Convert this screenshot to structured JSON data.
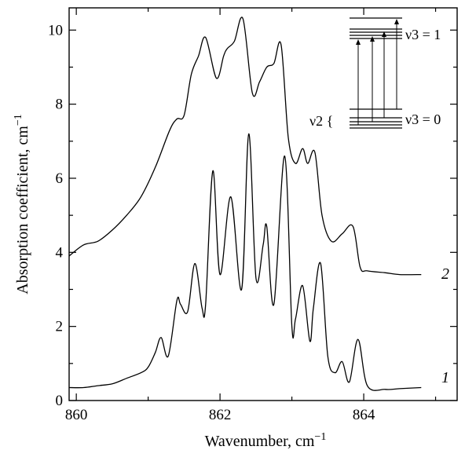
{
  "chart_data": {
    "type": "line",
    "title": "",
    "xlabel": "Wavenumber, cm",
    "xlabel_sup": "−1",
    "ylabel": "Absorption coefficient, cm",
    "ylabel_sup": "−1",
    "xlim": [
      859.9,
      865.3
    ],
    "ylim": [
      0,
      10.6
    ],
    "xticks": [
      860,
      862,
      864
    ],
    "xtick_labels": [
      "860",
      "862",
      "864"
    ],
    "yticks": [
      0,
      2,
      4,
      6,
      8,
      10
    ],
    "ytick_labels": [
      "0",
      "2",
      "4",
      "6",
      "8",
      "10"
    ],
    "grid": false,
    "series": [
      {
        "name": "1",
        "x": [
          859.9,
          860.1,
          860.3,
          860.5,
          860.7,
          860.9,
          861.0,
          861.1,
          861.18,
          861.28,
          861.4,
          861.45,
          861.55,
          861.65,
          861.75,
          861.8,
          861.9,
          862.0,
          862.15,
          862.3,
          862.4,
          862.5,
          862.6,
          862.65,
          862.75,
          862.9,
          863.0,
          863.05,
          863.15,
          863.25,
          863.3,
          863.4,
          863.5,
          863.6,
          863.7,
          863.8,
          863.92,
          864.05,
          864.3,
          864.5,
          864.8
        ],
        "values": [
          0.35,
          0.35,
          0.4,
          0.45,
          0.6,
          0.75,
          0.9,
          1.3,
          1.7,
          1.2,
          2.7,
          2.6,
          2.4,
          3.7,
          2.5,
          2.6,
          6.2,
          3.4,
          5.5,
          3.0,
          7.2,
          3.3,
          4.2,
          4.7,
          2.6,
          6.6,
          2.0,
          2.2,
          3.1,
          1.6,
          2.5,
          3.7,
          1.2,
          0.75,
          1.05,
          0.5,
          1.65,
          0.4,
          0.3,
          0.32,
          0.35
        ]
      },
      {
        "name": "2",
        "x": [
          859.9,
          860.1,
          860.3,
          860.5,
          860.7,
          860.9,
          861.1,
          861.3,
          861.4,
          861.5,
          861.6,
          861.7,
          861.8,
          861.95,
          862.05,
          862.1,
          862.2,
          862.32,
          862.45,
          862.55,
          862.65,
          862.75,
          862.85,
          862.95,
          863.05,
          863.15,
          863.22,
          863.32,
          863.42,
          863.55,
          863.7,
          863.85,
          863.95,
          864.05,
          864.3,
          864.5,
          864.8
        ],
        "values": [
          3.9,
          4.2,
          4.3,
          4.6,
          5.0,
          5.5,
          6.3,
          7.3,
          7.6,
          7.7,
          8.8,
          9.3,
          9.8,
          8.7,
          9.3,
          9.5,
          9.7,
          10.3,
          8.3,
          8.6,
          9.0,
          9.1,
          9.6,
          7.1,
          6.4,
          6.8,
          6.4,
          6.7,
          5.0,
          4.3,
          4.5,
          4.7,
          3.6,
          3.5,
          3.45,
          3.4,
          3.4
        ]
      }
    ],
    "inset": {
      "upper_label": "ν3 = 1",
      "lower_label": "ν3 = 0",
      "side_label": "ν2 {"
    }
  }
}
